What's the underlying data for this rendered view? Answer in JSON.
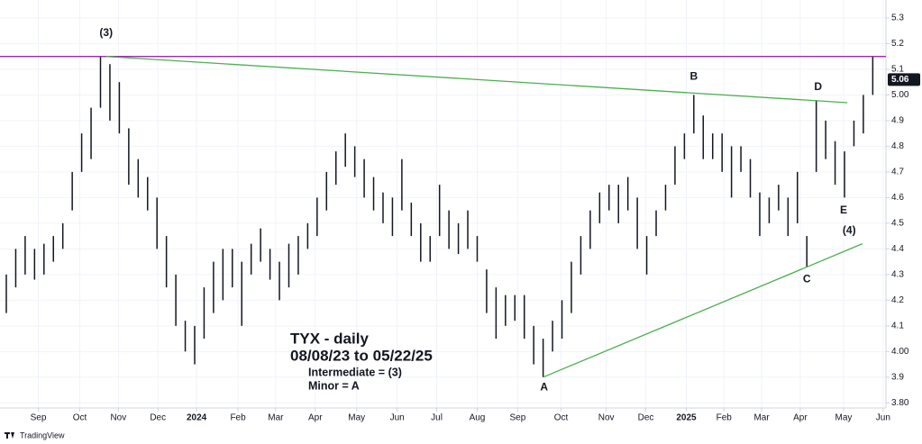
{
  "chart_data": {
    "type": "ohlc",
    "title": "TYX - daily",
    "subtitle": "08/08/23 to 05/22/25",
    "notes": [
      "Intermediate = (3)",
      "Minor = A"
    ],
    "high": [
      4.3,
      4.4,
      4.45,
      4.4,
      4.42,
      4.45,
      4.5,
      4.7,
      4.85,
      4.95,
      5.15,
      5.12,
      5.05,
      4.87,
      4.75,
      4.68,
      4.6,
      4.45,
      4.3,
      4.12,
      4.1,
      4.25,
      4.35,
      4.4,
      4.4,
      4.35,
      4.42,
      4.48,
      4.4,
      4.35,
      4.42,
      4.45,
      4.5,
      4.6,
      4.7,
      4.78,
      4.85,
      4.8,
      4.75,
      4.68,
      4.62,
      4.6,
      4.75,
      4.58,
      4.5,
      4.45,
      4.65,
      4.55,
      4.5,
      4.55,
      4.45,
      4.32,
      4.25,
      4.22,
      4.22,
      4.22,
      4.1,
      4.05,
      4.12,
      4.2,
      4.35,
      4.45,
      4.55,
      4.62,
      4.65,
      4.65,
      4.68,
      4.6,
      4.45,
      4.55,
      4.65,
      4.8,
      4.85,
      5.0,
      4.92,
      4.85,
      4.85,
      4.8,
      4.8,
      4.75,
      4.62,
      4.6,
      4.65,
      4.6,
      4.7,
      4.45,
      4.98,
      4.9,
      4.82,
      4.78,
      4.9,
      5.0,
      5.15
    ],
    "low": [
      4.15,
      4.25,
      4.3,
      4.28,
      4.3,
      4.35,
      4.4,
      4.55,
      4.7,
      4.75,
      4.95,
      4.9,
      4.85,
      4.65,
      4.6,
      4.55,
      4.4,
      4.25,
      4.1,
      4.0,
      3.95,
      4.05,
      4.15,
      4.2,
      4.25,
      4.1,
      4.3,
      4.35,
      4.28,
      4.2,
      4.25,
      4.3,
      4.4,
      4.45,
      4.55,
      4.65,
      4.72,
      4.68,
      4.6,
      4.55,
      4.5,
      4.45,
      4.55,
      4.45,
      4.35,
      4.35,
      4.45,
      4.4,
      4.38,
      4.4,
      4.35,
      4.15,
      4.05,
      4.1,
      4.12,
      4.05,
      3.95,
      3.9,
      4.0,
      4.05,
      4.15,
      4.3,
      4.4,
      4.5,
      4.55,
      4.5,
      4.55,
      4.4,
      4.3,
      4.45,
      4.55,
      4.65,
      4.75,
      4.85,
      4.75,
      4.75,
      4.7,
      4.6,
      4.7,
      4.6,
      4.45,
      4.5,
      4.55,
      4.45,
      4.5,
      4.33,
      4.7,
      4.75,
      4.65,
      4.6,
      4.8,
      4.85,
      5.0
    ],
    "color": "#131722",
    "ylim": [
      3.78,
      5.37
    ],
    "yticks": [
      {
        "value": 3.8,
        "label": "3.80"
      },
      3.9,
      {
        "value": 4.0,
        "label": "4.00"
      },
      4.1,
      4.2,
      4.3,
      4.4,
      4.5,
      4.6,
      4.7,
      4.8,
      4.9,
      {
        "value": 5.0,
        "label": "5.00"
      },
      5.1,
      5.2,
      5.3
    ],
    "xlim": [
      -0.67,
      93.4
    ],
    "xticks": [
      {
        "value": 3.4,
        "label": "Sep"
      },
      {
        "value": 7.8,
        "label": "Oct"
      },
      {
        "value": 11.9,
        "label": "Nov"
      },
      {
        "value": 16.1,
        "label": "Dec"
      },
      {
        "value": 20.2,
        "label": "2024"
      },
      {
        "value": 24.6,
        "label": "Feb"
      },
      {
        "value": 28.6,
        "label": "Mar"
      },
      {
        "value": 32.8,
        "label": "Apr"
      },
      {
        "value": 37.2,
        "label": "May"
      },
      {
        "value": 41.5,
        "label": "Jun"
      },
      {
        "value": 45.7,
        "label": "Jul"
      },
      {
        "value": 50.0,
        "label": "Aug"
      },
      {
        "value": 54.3,
        "label": "Sep"
      },
      {
        "value": 58.9,
        "label": "Oct"
      },
      {
        "value": 63.7,
        "label": "Nov"
      },
      {
        "value": 67.9,
        "label": "Dec"
      },
      {
        "value": 72.2,
        "label": "2025"
      },
      {
        "value": 76.2,
        "label": "Feb"
      },
      {
        "value": 80.2,
        "label": "Mar"
      },
      {
        "value": 84.3,
        "label": "Apr"
      },
      {
        "value": 88.9,
        "label": "May"
      },
      {
        "value": 93.1,
        "label": "Jun"
      }
    ],
    "grid": true,
    "last_price": 5.06,
    "lines": [
      {
        "color": "#9c27b0",
        "x": [
          -0.67,
          93.4
        ],
        "y": [
          5.15,
          5.15
        ]
      },
      {
        "color": "#4caf50",
        "x": [
          10.6,
          89.3
        ],
        "y": [
          5.15,
          4.97
        ]
      },
      {
        "color": "#4caf50",
        "x": [
          57.0,
          90.9
        ],
        "y": [
          3.9,
          4.42
        ]
      }
    ],
    "wave_labels": [
      {
        "label": "(3)",
        "x": 10.6,
        "y": 5.24
      },
      {
        "label": "B",
        "x": 73.0,
        "y": 5.07
      },
      {
        "label": "D",
        "x": 86.2,
        "y": 5.03
      },
      {
        "label": "E",
        "x": 88.9,
        "y": 4.55
      },
      {
        "label": "(4)",
        "x": 89.5,
        "y": 4.47
      },
      {
        "label": "C",
        "x": 85.0,
        "y": 4.28
      },
      {
        "label": "A",
        "x": 57.1,
        "y": 3.86
      }
    ],
    "brand": "TradingView"
  }
}
